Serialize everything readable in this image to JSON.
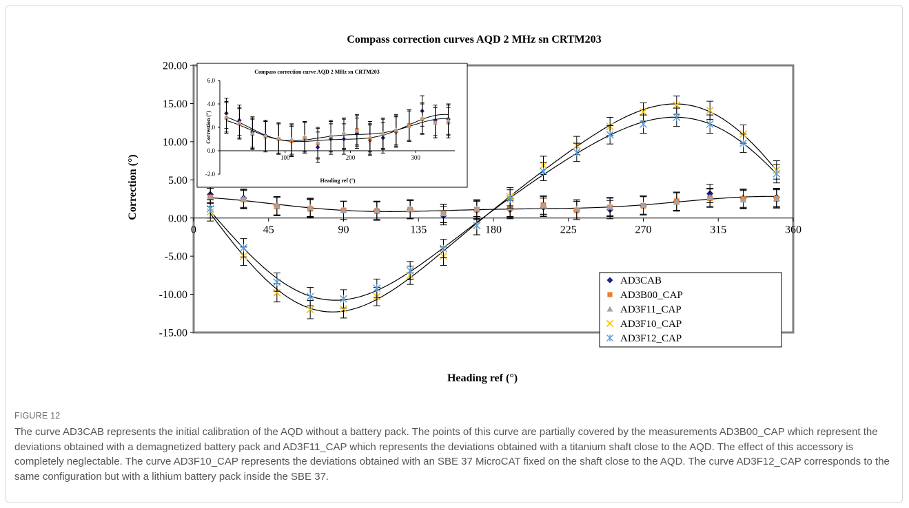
{
  "figure": {
    "label": "FIGURE 12",
    "caption": "The curve AD3CAB represents the initial calibration of the AQD without a battery pack. The points of this curve are partially covered by the measurements AD3B00_CAP which represent the deviations obtained with a demagnetized battery pack and AD3F11_CAP which represents the deviations obtained with a titanium shaft close to the AQD. The effect of this accessory is completely neglectable. The curve AD3F10_CAP represents the deviations obtained with an SBE 37 MicroCAT fixed on the shaft close to the AQD. The curve AD3F12_CAP corresponds to the same configuration but with a lithium battery pack inside the SBE 37."
  },
  "chart_data": [
    {
      "type": "scatter",
      "title": "Compass correction curves AQD 2 MHz sn CRTM203",
      "xlabel": "Heading ref (°)",
      "ylabel": "Correction (°)",
      "xlim": [
        0,
        360
      ],
      "ylim": [
        -15,
        20
      ],
      "xticks": [
        0,
        45,
        90,
        135,
        180,
        225,
        270,
        315,
        360
      ],
      "xtick_labels": [
        "0",
        "45",
        "90",
        "135",
        "180",
        "225",
        "270",
        "315",
        "360"
      ],
      "yticks": [
        -15,
        -10,
        -5,
        0,
        5,
        10,
        15,
        20
      ],
      "ytick_labels": [
        "-15.00",
        "-10.00",
        "-5.00",
        "0.00",
        "5.00",
        "10.00",
        "15.00",
        "20.00"
      ],
      "grid": false,
      "legend_position": "bottom-right",
      "error_bar": 1.2,
      "x": [
        10,
        30,
        50,
        70,
        90,
        110,
        130,
        150,
        170,
        190,
        210,
        230,
        250,
        270,
        290,
        310,
        330,
        350
      ],
      "series": [
        {
          "name": "AD3CAB",
          "marker": "diamond",
          "color": "#1f1f8c",
          "values": [
            3.1,
            2.6,
            1.6,
            1.3,
            1.0,
            1.0,
            1.1,
            0.3,
            1.0,
            1.1,
            1.4,
            1.0,
            1.1,
            1.6,
            2.2,
            3.2,
            2.6,
            2.7
          ]
        },
        {
          "name": "AD3B00_CAP",
          "marker": "square",
          "color": "#ed7d31",
          "values": [
            2.7,
            2.4,
            1.5,
            1.2,
            1.0,
            0.9,
            1.1,
            0.6,
            1.1,
            1.3,
            1.7,
            1.0,
            1.4,
            1.6,
            2.2,
            2.6,
            2.5,
            2.5
          ]
        },
        {
          "name": "AD3F11_CAP",
          "marker": "triangle",
          "color": "#a5a5a5",
          "values": [
            2.7,
            2.5,
            1.6,
            1.4,
            1.0,
            1.0,
            1.2,
            0.6,
            1.2,
            1.4,
            1.6,
            1.2,
            1.5,
            1.7,
            2.1,
            2.7,
            2.4,
            2.6
          ]
        },
        {
          "name": "AD3F10_CAP",
          "marker": "x",
          "color": "#ffc000",
          "values": [
            0.8,
            -5.0,
            -9.8,
            -12.0,
            -11.9,
            -10.3,
            -7.5,
            -5.0,
            -1.0,
            2.8,
            6.9,
            9.5,
            12.0,
            13.9,
            14.8,
            14.1,
            11.0,
            6.3
          ]
        },
        {
          "name": "AD3F12_CAP",
          "marker": "star",
          "color": "#5b9bd5",
          "values": [
            1.2,
            -3.9,
            -8.4,
            -10.3,
            -10.6,
            -9.2,
            -6.9,
            -4.0,
            -1.0,
            2.5,
            6.1,
            8.6,
            10.9,
            12.3,
            13.2,
            12.3,
            9.8,
            5.8
          ]
        }
      ]
    },
    {
      "type": "scatter",
      "title": "Compass correction curve AQD 2 MHz sn CRTM203",
      "xlabel": "Heading ref (°)",
      "ylabel": "Correction (°)",
      "xlim": [
        0,
        360
      ],
      "ylim": [
        -2,
        6
      ],
      "xticks": [
        100,
        200,
        300
      ],
      "xtick_labels": [
        "100",
        "200",
        "300"
      ],
      "yticks": [
        -2,
        0,
        2,
        4,
        6
      ],
      "ytick_labels": [
        "-2.0",
        "0.0",
        "2.0",
        "4.0",
        "6.0"
      ],
      "grid": false,
      "error_bar": 1.3,
      "x": [
        10,
        30,
        50,
        70,
        90,
        110,
        130,
        150,
        170,
        190,
        210,
        230,
        250,
        270,
        290,
        310,
        330,
        350
      ],
      "series": [
        {
          "marker": "diamond",
          "color": "#1f1f8c",
          "values": [
            3.2,
            2.6,
            1.6,
            1.3,
            1.0,
            0.9,
            1.1,
            0.3,
            1.0,
            1.0,
            1.5,
            0.9,
            1.1,
            1.6,
            2.2,
            3.4,
            2.6,
            2.7
          ]
        },
        {
          "marker": "square",
          "color": "#ed7d31",
          "values": [
            2.8,
            2.3,
            1.4,
            1.2,
            1.0,
            0.8,
            1.1,
            0.6,
            1.2,
            1.4,
            1.8,
            1.0,
            1.4,
            1.7,
            2.2,
            2.7,
            2.4,
            2.4
          ]
        },
        {
          "marker": "triangle",
          "color": "#a5a5a5",
          "values": [
            2.9,
            2.4,
            1.5,
            1.3,
            1.1,
            1.0,
            1.2,
            0.7,
            1.3,
            1.5,
            1.7,
            1.2,
            1.5,
            1.8,
            2.1,
            2.8,
            2.4,
            2.6
          ]
        }
      ]
    }
  ]
}
